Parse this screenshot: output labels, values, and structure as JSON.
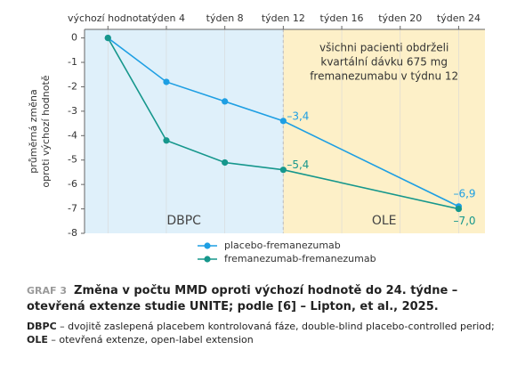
{
  "chart_data": {
    "type": "line",
    "ylabel": [
      "průměrná změna",
      "oproti výchozí hodnotě"
    ],
    "xticks": [
      {
        "value": 0,
        "label": "výchozí hodnota"
      },
      {
        "value": 4,
        "label": "týden 4"
      },
      {
        "value": 8,
        "label": "týden 8"
      },
      {
        "value": 12,
        "label": "týden 12"
      },
      {
        "value": 16,
        "label": "týden 16"
      },
      {
        "value": 20,
        "label": "týden 20"
      },
      {
        "value": 24,
        "label": "týden 24"
      }
    ],
    "xlim": [
      -1.6,
      25.8
    ],
    "ylim": [
      -8,
      0.35
    ],
    "yticks": [
      0,
      -1,
      -2,
      -3,
      -4,
      -5,
      -6,
      -7,
      -8
    ],
    "x": [
      0,
      4,
      8,
      12,
      24
    ],
    "series": [
      {
        "name": "placebo-fremanezumab",
        "color": "#1e9fe3",
        "values": [
          0,
          -1.8,
          -2.6,
          -3.4,
          -6.9
        ],
        "value_labels": [
          null,
          null,
          null,
          "–3,4",
          "–6,9"
        ]
      },
      {
        "name": "fremanezumab-fremanezumab",
        "color": "#16978c",
        "values": [
          0,
          -4.2,
          -5.1,
          -5.4,
          -7.0
        ],
        "value_labels": [
          null,
          null,
          null,
          "–5,4",
          "–7,0"
        ]
      }
    ],
    "phases": [
      {
        "label": "DBPC",
        "from": -1.6,
        "to": 12,
        "color": "#dff0fa"
      },
      {
        "label": "OLE",
        "from": 12,
        "to": 25.8,
        "color": "#fdf0c8"
      }
    ],
    "annotation": [
      "všichni pacienti obdrželi",
      "kvartální dávku 675 mg",
      "fremanezumabu v týdnu 12"
    ],
    "caption": {
      "label": "GRAF 3",
      "title": "Změna v počtu MMD oproti výchozí hodnotě do 24. týdne – otevřená extenze studie UNITE; podle [6] – Lipton, et al., 2025.",
      "notes": [
        {
          "term": "DBPC",
          "text": " – dvojitě zaslepená placebem kontrolovaná fáze, double-blind placebo-controlled period;"
        },
        {
          "term": "OLE",
          "text": " – otevřená extenze, open-label extension"
        }
      ]
    }
  }
}
